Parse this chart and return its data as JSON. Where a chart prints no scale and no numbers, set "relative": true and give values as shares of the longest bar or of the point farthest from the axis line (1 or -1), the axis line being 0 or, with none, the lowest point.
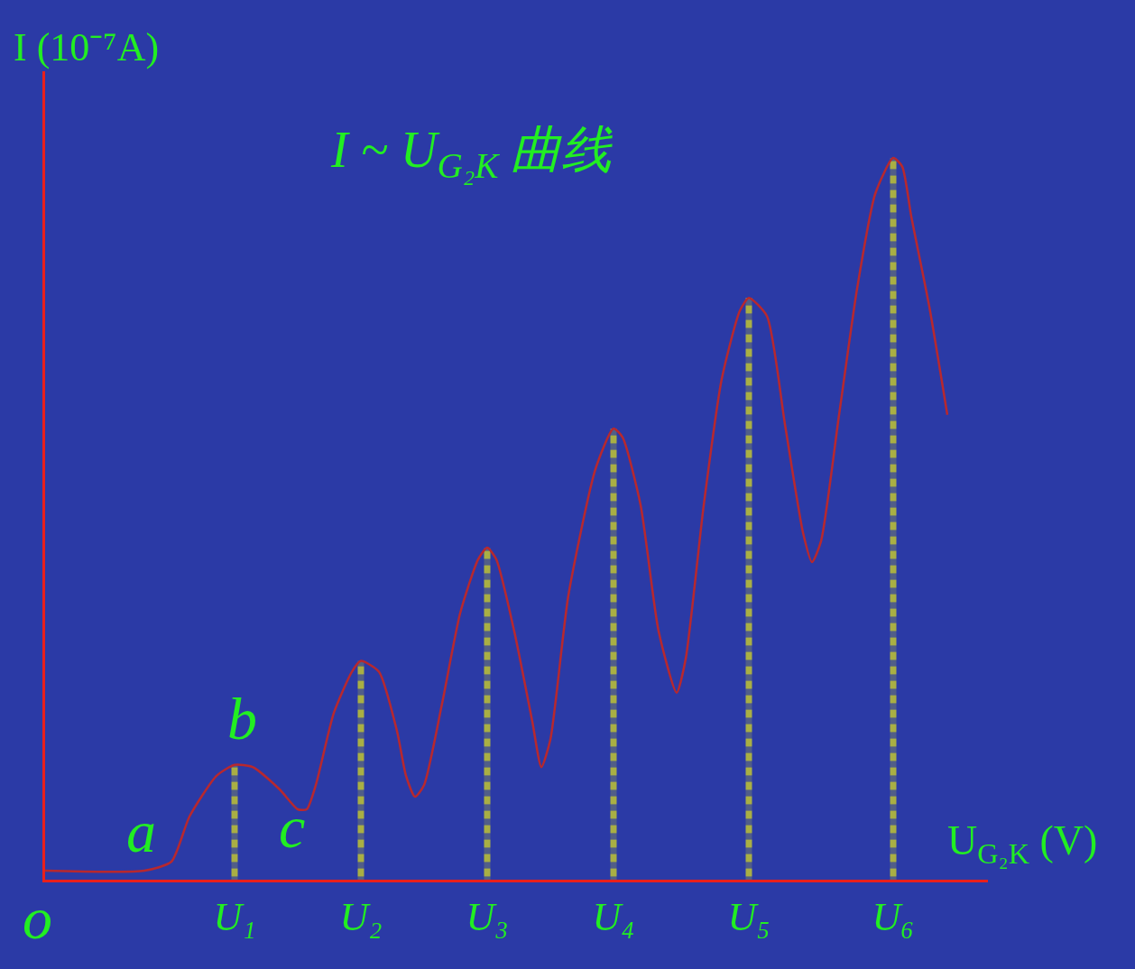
{
  "chart_data": {
    "type": "line",
    "relative": true,
    "title": "I ~ U$_{G₂K}$ 曲线",
    "xlabel": "U$_{G₂K}$ (V)",
    "ylabel": "I (10⁻⁷A)",
    "categories": [
      null,
      null,
      null,
      null,
      null,
      null,
      null,
      null,
      null,
      null,
      null,
      null,
      null,
      null,
      null,
      null,
      null,
      null,
      null,
      null,
      null,
      "U₁",
      null,
      null,
      null,
      null,
      null,
      null,
      null,
      null,
      null,
      null,
      null,
      null,
      null,
      "U₂",
      null,
      null,
      null,
      null,
      null,
      null,
      null,
      null,
      null,
      null,
      null,
      null,
      null,
      "U₃",
      null,
      null,
      null,
      null,
      null,
      null,
      null,
      null,
      null,
      null,
      null,
      null,
      null,
      "U₄",
      null,
      null,
      null,
      null,
      null,
      null,
      null,
      null,
      null,
      null,
      null,
      null,
      null,
      null,
      "U₅",
      null,
      null,
      null,
      null,
      null,
      null,
      null,
      null,
      null,
      null,
      null,
      null,
      null,
      null,
      null,
      "U₆",
      null,
      null,
      null,
      null,
      null,
      null,
      null,
      null,
      null,
      null
    ],
    "grid": false,
    "marker": "none",
    "series": [
      {
        "color": "#b8282e",
        "line_style": "solid",
        "values": [
          0.0125,
          null,
          null,
          null,
          null,
          null,
          null,
          null,
          null,
          null,
          null,
          0.0125,
          null,
          null,
          0.025,
          null,
          0.0875,
          null,
          null,
          0.144,
          null,
          0.159,
          null,
          0.156,
          null,
          null,
          0.125,
          null,
          0.0975,
          0.0975,
          0.131,
          null,
          0.231,
          null,
          0.288,
          0.303,
          null,
          0.288,
          null,
          0.206,
          0.144,
          0.115,
          0.131,
          null,
          0.244,
          null,
          0.369,
          null,
          0.444,
          0.46,
          0.444,
          null,
          0.344,
          null,
          0.219,
          0.156,
          0.194,
          null,
          0.394,
          null,
          null,
          0.569,
          null,
          0.625,
          0.613,
          null,
          0.519,
          null,
          0.344,
          null,
          0.259,
          0.306,
          null,
          0.519,
          null,
          0.694,
          null,
          0.788,
          0.806,
          null,
          0.781,
          null,
          0.631,
          null,
          0.481,
          0.44,
          0.469,
          null,
          0.644,
          null,
          0.819,
          null,
          0.95,
          null,
          1,
          0.988,
          0.919,
          null,
          0.794,
          null,
          0.644,
          null,
          null,
          null,
          null
        ]
      },
      {
        "type": "bar",
        "color": "#ffff00",
        "line_style": "dashed",
        "values": [
          null,
          null,
          null,
          null,
          null,
          null,
          null,
          null,
          null,
          null,
          null,
          null,
          null,
          null,
          null,
          null,
          null,
          null,
          null,
          null,
          null,
          0.159,
          null,
          null,
          null,
          null,
          null,
          null,
          null,
          null,
          null,
          null,
          null,
          null,
          null,
          0.303,
          null,
          null,
          null,
          null,
          null,
          null,
          null,
          null,
          null,
          null,
          null,
          null,
          null,
          0.46,
          null,
          null,
          null,
          null,
          null,
          null,
          null,
          null,
          null,
          null,
          null,
          null,
          null,
          0.625,
          null,
          null,
          null,
          null,
          null,
          null,
          null,
          null,
          null,
          null,
          null,
          null,
          null,
          null,
          0.806,
          null,
          null,
          null,
          null,
          null,
          null,
          null,
          null,
          null,
          null,
          null,
          null,
          null,
          null,
          null,
          1,
          null,
          null,
          null,
          null,
          null,
          null,
          null,
          null,
          null,
          null
        ]
      }
    ],
    "annotations": [
      "a",
      "b",
      "c",
      "o"
    ]
  }
}
